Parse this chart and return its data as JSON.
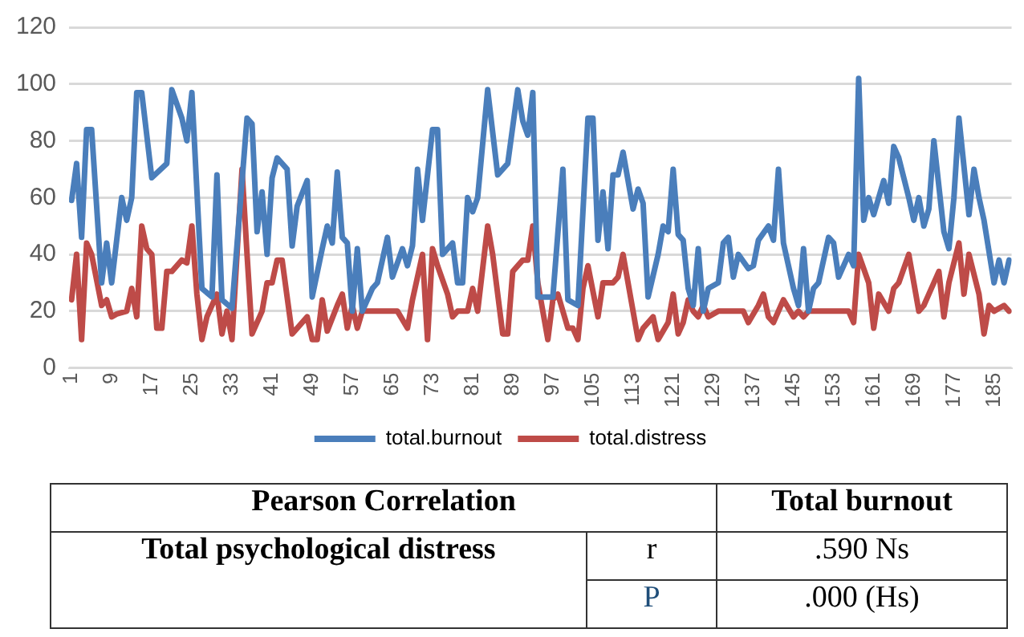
{
  "chart_data": {
    "type": "line",
    "xlim": [
      0.5,
      188.5
    ],
    "xticks": [
      1,
      9,
      17,
      25,
      33,
      41,
      49,
      57,
      65,
      73,
      81,
      89,
      97,
      105,
      113,
      121,
      129,
      137,
      145,
      153,
      161,
      169,
      177,
      185
    ],
    "ylim": [
      0,
      120
    ],
    "yticks": [
      0,
      20,
      40,
      60,
      80,
      100,
      120
    ],
    "grid": "y",
    "legend": "bottom",
    "marker": "none",
    "line_style": "solid",
    "series": [
      {
        "name": "total.burnout",
        "color": "#4a7ebb",
        "x": [
          1,
          2,
          3,
          4,
          5,
          7,
          8,
          9,
          11,
          12,
          13,
          14,
          15,
          17,
          20,
          21,
          23,
          24,
          25,
          27,
          29,
          30,
          31,
          33,
          36,
          37,
          38,
          39,
          40,
          41,
          42,
          44,
          45,
          46,
          48,
          49,
          51,
          52,
          53,
          54,
          55,
          56,
          57,
          58,
          59,
          61,
          62,
          64,
          65,
          67,
          68,
          69,
          70,
          71,
          73,
          74,
          75,
          77,
          78,
          79,
          80,
          81,
          82,
          84,
          86,
          87,
          88,
          90,
          91,
          92,
          93,
          94,
          97,
          99,
          100,
          102,
          104,
          105,
          106,
          107,
          108,
          109,
          110,
          111,
          113,
          114,
          115,
          116,
          118,
          119,
          120,
          121,
          122,
          123,
          124,
          125,
          126,
          127,
          128,
          130,
          131,
          132,
          133,
          134,
          136,
          137,
          138,
          140,
          141,
          142,
          143,
          145,
          146,
          147,
          148,
          149,
          150,
          152,
          153,
          154,
          156,
          157,
          158,
          159,
          160,
          161,
          163,
          164,
          165,
          166,
          168,
          169,
          170,
          171,
          172,
          173,
          175,
          176,
          177,
          178,
          180,
          181,
          182,
          183,
          185,
          186,
          187,
          188
        ],
        "values": [
          59,
          72,
          46,
          84,
          84,
          30,
          44,
          30,
          60,
          52,
          60,
          97,
          97,
          67,
          72,
          98,
          88,
          80,
          97,
          28,
          25,
          68,
          24,
          21,
          88,
          86,
          48,
          62,
          40,
          67,
          74,
          70,
          43,
          57,
          66,
          25,
          42,
          50,
          44,
          69,
          46,
          44,
          20,
          42,
          20,
          28,
          30,
          46,
          32,
          42,
          36,
          43,
          70,
          52,
          84,
          84,
          40,
          44,
          30,
          30,
          60,
          55,
          60,
          98,
          68,
          70,
          72,
          98,
          87,
          82,
          97,
          25,
          25,
          70,
          24,
          22,
          88,
          88,
          45,
          62,
          42,
          68,
          68,
          76,
          56,
          63,
          58,
          25,
          40,
          50,
          48,
          70,
          47,
          45,
          28,
          22,
          42,
          20,
          28,
          30,
          44,
          46,
          32,
          40,
          35,
          36,
          45,
          50,
          45,
          70,
          44,
          28,
          22,
          42,
          20,
          28,
          30,
          46,
          44,
          32,
          40,
          36,
          102,
          52,
          60,
          54,
          66,
          58,
          78,
          74,
          60,
          52,
          60,
          50,
          56,
          80,
          48,
          42,
          60,
          88,
          54,
          70,
          60,
          52,
          30,
          38,
          30,
          38
        ]
      },
      {
        "name": "total.distress",
        "color": "#be4b48",
        "x": [
          1,
          2,
          3,
          4,
          5,
          7,
          8,
          9,
          10,
          12,
          13,
          14,
          15,
          16,
          17,
          18,
          19,
          20,
          21,
          23,
          24,
          25,
          26,
          27,
          28,
          30,
          31,
          32,
          33,
          35,
          36,
          37,
          39,
          40,
          41,
          42,
          43,
          45,
          46,
          48,
          49,
          50,
          51,
          52,
          54,
          55,
          56,
          57,
          58,
          59,
          61,
          62,
          64,
          66,
          68,
          69,
          71,
          72,
          73,
          74,
          76,
          77,
          78,
          80,
          81,
          82,
          84,
          85,
          87,
          88,
          89,
          91,
          92,
          93,
          94,
          96,
          97,
          98,
          100,
          101,
          102,
          103,
          104,
          106,
          107,
          109,
          110,
          111,
          113,
          114,
          115,
          117,
          118,
          120,
          121,
          122,
          123,
          124,
          125,
          126,
          127,
          128,
          130,
          131,
          133,
          135,
          136,
          138,
          139,
          140,
          141,
          143,
          145,
          146,
          147,
          148,
          150,
          152,
          154,
          156,
          157,
          158,
          160,
          161,
          162,
          164,
          165,
          166,
          168,
          169,
          170,
          171,
          172,
          174,
          175,
          176,
          178,
          179,
          180,
          182,
          183,
          184,
          185,
          187,
          188
        ],
        "values": [
          24,
          40,
          10,
          44,
          40,
          22,
          24,
          18,
          19,
          20,
          28,
          18,
          50,
          42,
          40,
          14,
          14,
          34,
          34,
          38,
          37,
          50,
          26,
          10,
          18,
          26,
          12,
          20,
          10,
          70,
          40,
          12,
          20,
          30,
          30,
          38,
          38,
          12,
          14,
          18,
          10,
          10,
          24,
          13,
          22,
          26,
          14,
          22,
          14,
          20,
          20,
          20,
          20,
          20,
          14,
          24,
          40,
          10,
          42,
          36,
          26,
          18,
          20,
          20,
          28,
          20,
          50,
          40,
          12,
          12,
          34,
          38,
          38,
          50,
          30,
          10,
          24,
          26,
          14,
          14,
          10,
          28,
          36,
          18,
          30,
          30,
          32,
          40,
          20,
          10,
          14,
          18,
          10,
          16,
          26,
          12,
          16,
          24,
          20,
          18,
          22,
          18,
          20,
          20,
          20,
          20,
          16,
          22,
          26,
          18,
          16,
          24,
          18,
          20,
          18,
          20,
          20,
          20,
          20,
          20,
          16,
          40,
          30,
          14,
          26,
          20,
          28,
          30,
          40,
          30,
          20,
          22,
          26,
          34,
          18,
          30,
          44,
          26,
          40,
          26,
          12,
          22,
          20,
          22,
          20
        ]
      }
    ],
    "annotations": [
      "Pearson Correlation",
      "Total burnout",
      "Total psychological distress",
      "r",
      ".590   Ns",
      "P",
      ".000 (Hs)"
    ]
  }
}
